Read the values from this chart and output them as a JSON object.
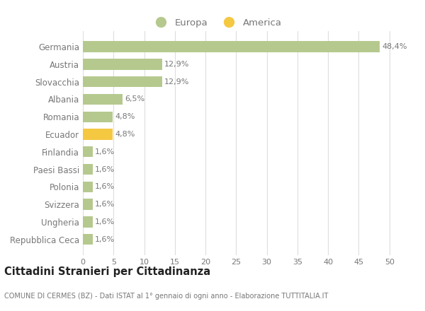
{
  "categories": [
    "Germania",
    "Austria",
    "Slovacchia",
    "Albania",
    "Romania",
    "Ecuador",
    "Finlandia",
    "Paesi Bassi",
    "Polonia",
    "Svizzera",
    "Ungheria",
    "Repubblica Ceca"
  ],
  "values": [
    48.4,
    12.9,
    12.9,
    6.5,
    4.8,
    4.8,
    1.6,
    1.6,
    1.6,
    1.6,
    1.6,
    1.6
  ],
  "labels": [
    "48,4%",
    "12,9%",
    "12,9%",
    "6,5%",
    "4,8%",
    "4,8%",
    "1,6%",
    "1,6%",
    "1,6%",
    "1,6%",
    "1,6%",
    "1,6%"
  ],
  "colors": [
    "#b5c98e",
    "#b5c98e",
    "#b5c98e",
    "#b5c98e",
    "#b5c98e",
    "#f5c842",
    "#b5c98e",
    "#b5c98e",
    "#b5c98e",
    "#b5c98e",
    "#b5c98e",
    "#b5c98e"
  ],
  "legend_labels": [
    "Europa",
    "America"
  ],
  "legend_colors": [
    "#b5c98e",
    "#f5c842"
  ],
  "title": "Cittadini Stranieri per Cittadinanza",
  "subtitle": "COMUNE DI CERMES (BZ) - Dati ISTAT al 1° gennaio di ogni anno - Elaborazione TUTTITALIA.IT",
  "xlim": [
    0,
    52
  ],
  "xticks": [
    0,
    5,
    10,
    15,
    20,
    25,
    30,
    35,
    40,
    45,
    50
  ],
  "background_color": "#ffffff",
  "grid_color": "#dddddd",
  "text_color": "#777777",
  "title_color": "#222222"
}
